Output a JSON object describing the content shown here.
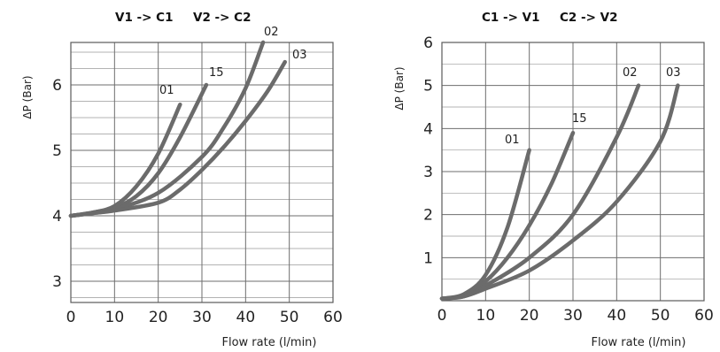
{
  "chart_data": [
    {
      "type": "line",
      "headings": [
        "V1 -> C1",
        "V2 -> C2"
      ],
      "xlabel": "Flow rate (l/min)",
      "ylabel": "ΔP (Bar)",
      "xlim": [
        0,
        60
      ],
      "ylim": [
        2.6,
        6.7
      ],
      "xticks": [
        "0",
        "10",
        "20",
        "30",
        "40",
        "50",
        "60"
      ],
      "yticks": [
        "3",
        "4",
        "5",
        "6"
      ],
      "grid": true,
      "series": [
        {
          "name": "01",
          "x": [
            0,
            5,
            10,
            15,
            20,
            25
          ],
          "y": [
            4.0,
            4.05,
            4.15,
            4.45,
            4.95,
            5.7
          ]
        },
        {
          "name": "15",
          "x": [
            0,
            5,
            10,
            15,
            20,
            25,
            31
          ],
          "y": [
            4.0,
            4.05,
            4.12,
            4.3,
            4.65,
            5.2,
            6.0
          ]
        },
        {
          "name": "02",
          "x": [
            0,
            5,
            10,
            20,
            30,
            35,
            40,
            44
          ],
          "y": [
            4.0,
            4.04,
            4.1,
            4.35,
            4.9,
            5.35,
            5.95,
            6.65
          ]
        },
        {
          "name": "03",
          "x": [
            0,
            5,
            10,
            20,
            25,
            30,
            35,
            40,
            45,
            49
          ],
          "y": [
            4.0,
            4.04,
            4.08,
            4.2,
            4.4,
            4.7,
            5.05,
            5.45,
            5.9,
            6.35
          ]
        }
      ]
    },
    {
      "type": "line",
      "headings": [
        "C1 -> V1",
        "C2 -> V2"
      ],
      "xlabel": "Flow rate (l/min)",
      "ylabel": "ΔP (Bar)",
      "xlim": [
        0,
        60
      ],
      "ylim": [
        0,
        6
      ],
      "xticks": [
        "0",
        "10",
        "20",
        "30",
        "40",
        "50",
        "60"
      ],
      "yticks": [
        "1",
        "2",
        "3",
        "4",
        "5",
        "6"
      ],
      "grid": true,
      "series": [
        {
          "name": "01",
          "x": [
            0,
            5,
            10,
            15,
            20
          ],
          "y": [
            0.05,
            0.15,
            0.6,
            1.7,
            3.5
          ]
        },
        {
          "name": "15",
          "x": [
            0,
            5,
            10,
            15,
            20,
            25,
            30
          ],
          "y": [
            0.05,
            0.12,
            0.45,
            1.0,
            1.75,
            2.7,
            3.9
          ]
        },
        {
          "name": "02",
          "x": [
            0,
            5,
            10,
            20,
            30,
            40,
            45
          ],
          "y": [
            0.05,
            0.1,
            0.35,
            1.0,
            2.0,
            3.8,
            5.0
          ]
        },
        {
          "name": "03",
          "x": [
            0,
            5,
            10,
            20,
            30,
            40,
            50,
            54
          ],
          "y": [
            0.05,
            0.1,
            0.28,
            0.7,
            1.4,
            2.3,
            3.7,
            5.0
          ]
        }
      ]
    }
  ]
}
